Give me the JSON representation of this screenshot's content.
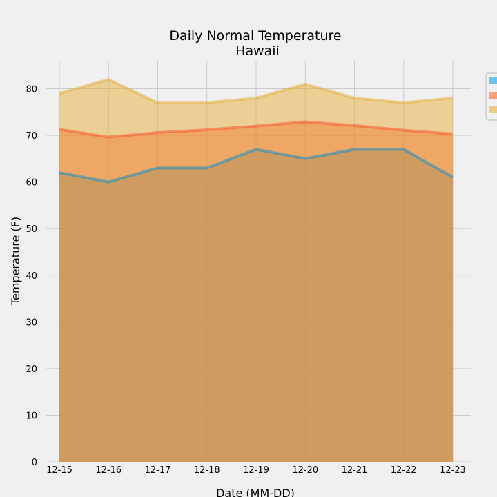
{
  "chart_data": {
    "type": "area",
    "title": "Daily Normal Temperature",
    "subtitle": "Hawaii",
    "xlabel": "Date (MM-DD)",
    "ylabel": "Temperature (F)",
    "ylim": [
      0,
      86
    ],
    "yticks": [
      0,
      10,
      20,
      30,
      40,
      50,
      60,
      70,
      80
    ],
    "grid": true,
    "legend": "upper-right",
    "stacked": false,
    "categories": [
      "12-15",
      "12-16",
      "12-17",
      "12-18",
      "12-19",
      "12-20",
      "12-21",
      "12-22",
      "12-23"
    ],
    "series": [
      {
        "color": "#008fd5",
        "fill": "#6fc1e8",
        "values": [
          62,
          60,
          63,
          63,
          67,
          65,
          67,
          67,
          61
        ]
      },
      {
        "color": "#fc4f30",
        "fill": "#f5a07f",
        "values": [
          71.3,
          69.6,
          70.6,
          71.2,
          72.0,
          72.9,
          72.1,
          71.1,
          70.3
        ]
      },
      {
        "color": "#e5ae38",
        "fill": "#e9cb8c",
        "values": [
          79,
          82,
          77,
          77,
          78,
          81,
          78,
          77,
          78
        ]
      }
    ]
  }
}
